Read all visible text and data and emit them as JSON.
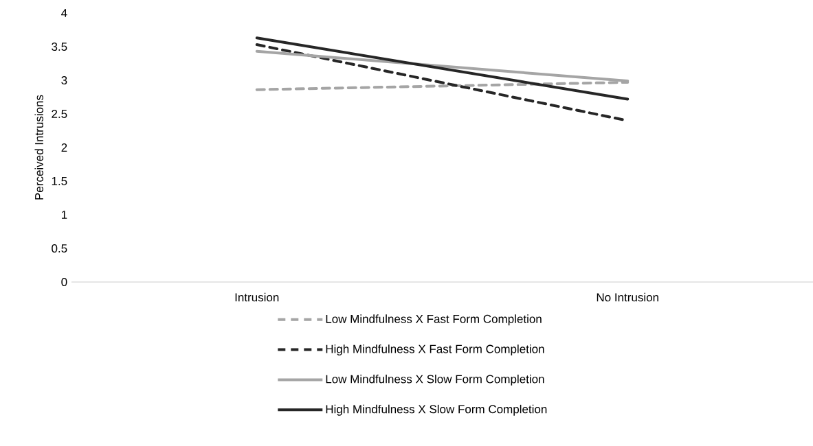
{
  "chart_data": {
    "type": "line",
    "ylabel": "Perceived Intrusions",
    "categories": [
      "Intrusion",
      "No Intrusion"
    ],
    "ylim": [
      0,
      4
    ],
    "yticks": [
      0,
      0.5,
      1,
      1.5,
      2,
      2.5,
      3,
      3.5,
      4
    ],
    "grid": false,
    "legend": "bottom",
    "marker": "none",
    "series": [
      {
        "name": "Low Mindfulness X Fast Form Completion",
        "color": "#a5a5a5",
        "line_style": "dashed",
        "values": [
          2.86,
          2.97
        ]
      },
      {
        "name": "High Mindfulness X Fast Form Completion",
        "color": "#262626",
        "line_style": "dashed",
        "values": [
          3.53,
          2.4
        ]
      },
      {
        "name": "Low Mindfulness X Slow Form Completion",
        "color": "#a5a5a5",
        "line_style": "solid",
        "values": [
          3.43,
          2.99
        ]
      },
      {
        "name": "High Mindfulness X Slow Form Completion",
        "color": "#262626",
        "line_style": "solid",
        "values": [
          3.63,
          2.72
        ]
      }
    ]
  }
}
